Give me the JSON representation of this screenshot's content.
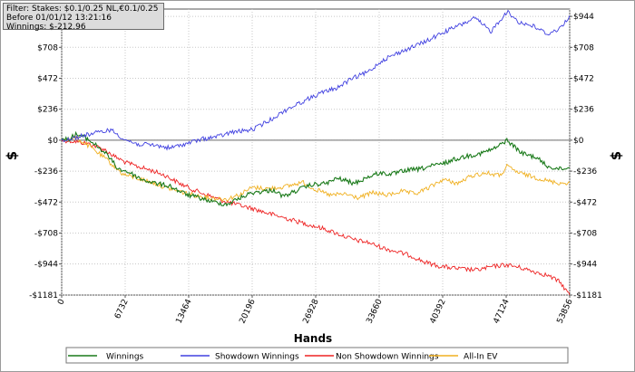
{
  "filter_box": {
    "line1": "Filter: Stakes: $0.1/0.25 NL,€0.1/0.25 NL",
    "line2": "Before 01/01/12 13:21:16",
    "line3": "Winnings: $-212.96"
  },
  "chart_data": {
    "type": "line",
    "xlabel": "Hands",
    "ylabel": "$",
    "ylabel_right": "$",
    "xlim": [
      0,
      53856
    ],
    "ylim": [
      -1181,
      1000
    ],
    "x_ticks": [
      0,
      6732,
      13464,
      20196,
      26928,
      33660,
      40392,
      47124,
      53856
    ],
    "x_tick_labels": [
      "0",
      "6732",
      "13464",
      "20196",
      "26928",
      "33660",
      "40392",
      "47124",
      "53856"
    ],
    "y_ticks": [
      -1181,
      -944,
      -708,
      -472,
      -236,
      0,
      236,
      472,
      708,
      944
    ],
    "y_tick_labels": [
      "-$1181",
      "-$944",
      "-$708",
      "-$472",
      "-$236",
      "$0",
      "$236",
      "$472",
      "$708",
      "$944"
    ],
    "grid": true,
    "legend_position": "bottom",
    "series": [
      {
        "name": "Winnings",
        "color": "#1a7a1a",
        "x": [
          0,
          800,
          1500,
          2500,
          3500,
          4800,
          6000,
          7000,
          8500,
          10000,
          11500,
          12500,
          13500,
          14600,
          16000,
          17500,
          18600,
          20200,
          21500,
          22500,
          23500,
          25000,
          26500,
          28000,
          29300,
          31000,
          32500,
          33700,
          35000,
          36500,
          38000,
          39000,
          40400,
          41500,
          43000,
          44500,
          46000,
          47200,
          48800,
          50300,
          51500,
          52800,
          53856
        ],
        "y": [
          0,
          10,
          45,
          20,
          -30,
          -110,
          -220,
          -240,
          -300,
          -330,
          -350,
          -390,
          -420,
          -440,
          -470,
          -490,
          -450,
          -400,
          -390,
          -380,
          -430,
          -380,
          -340,
          -330,
          -290,
          -330,
          -280,
          -250,
          -260,
          -230,
          -220,
          -200,
          -180,
          -150,
          -120,
          -100,
          -60,
          0,
          -100,
          -130,
          -200,
          -220,
          -210
        ]
      },
      {
        "name": "Showdown Winnings",
        "color": "#4040e0",
        "x": [
          0,
          1500,
          2800,
          4000,
          5200,
          6700,
          8000,
          10000,
          11500,
          13500,
          15000,
          16700,
          18000,
          20200,
          22000,
          24000,
          26000,
          27500,
          29200,
          30800,
          32500,
          34000,
          35500,
          37500,
          38800,
          40400,
          42000,
          43800,
          45500,
          47200,
          48500,
          50000,
          51500,
          52800,
          53856
        ],
        "y": [
          0,
          20,
          45,
          60,
          80,
          5,
          -30,
          -40,
          -60,
          -20,
          10,
          30,
          60,
          80,
          150,
          240,
          310,
          360,
          400,
          470,
          520,
          610,
          660,
          720,
          760,
          820,
          870,
          930,
          830,
          980,
          900,
          870,
          810,
          850,
          950
        ]
      },
      {
        "name": "Non Showdown Winnings",
        "color": "#ee2222",
        "x": [
          0,
          1500,
          3000,
          4500,
          5500,
          6800,
          8000,
          9500,
          11000,
          12500,
          14000,
          15500,
          17000,
          18500,
          20200,
          22000,
          24000,
          26000,
          28000,
          29500,
          31000,
          32500,
          34000,
          35500,
          37000,
          38500,
          40000,
          42000,
          44000,
          46000,
          47200,
          48500,
          50000,
          51500,
          52800,
          53856
        ],
        "y": [
          0,
          -10,
          -30,
          -70,
          -120,
          -170,
          -200,
          -230,
          -270,
          -330,
          -380,
          -420,
          -460,
          -490,
          -520,
          -560,
          -600,
          -640,
          -680,
          -720,
          -760,
          -780,
          -820,
          -850,
          -880,
          -930,
          -960,
          -980,
          -990,
          -960,
          -950,
          -970,
          -1000,
          -1030,
          -1080,
          -1181
        ]
      },
      {
        "name": "All-In EV",
        "color": "#f0b020",
        "x": [
          0,
          1500,
          3000,
          4800,
          6500,
          8000,
          9500,
          11000,
          12500,
          14000,
          15800,
          17500,
          19000,
          20200,
          22000,
          24000,
          25500,
          27000,
          28500,
          30000,
          31500,
          33000,
          34500,
          36000,
          37500,
          39000,
          40400,
          42000,
          43500,
          45000,
          46500,
          47200,
          48500,
          50000,
          51500,
          53000,
          53856
        ],
        "y": [
          0,
          20,
          -50,
          -150,
          -260,
          -290,
          -320,
          -360,
          -390,
          -420,
          -440,
          -450,
          -410,
          -360,
          -370,
          -350,
          -320,
          -380,
          -420,
          -410,
          -440,
          -400,
          -420,
          -390,
          -410,
          -360,
          -300,
          -330,
          -270,
          -250,
          -270,
          -200,
          -250,
          -280,
          -310,
          -330,
          -320
        ]
      }
    ],
    "legend": [
      "Winnings",
      "Showdown Winnings",
      "Non Showdown Winnings",
      "All-In EV"
    ]
  }
}
